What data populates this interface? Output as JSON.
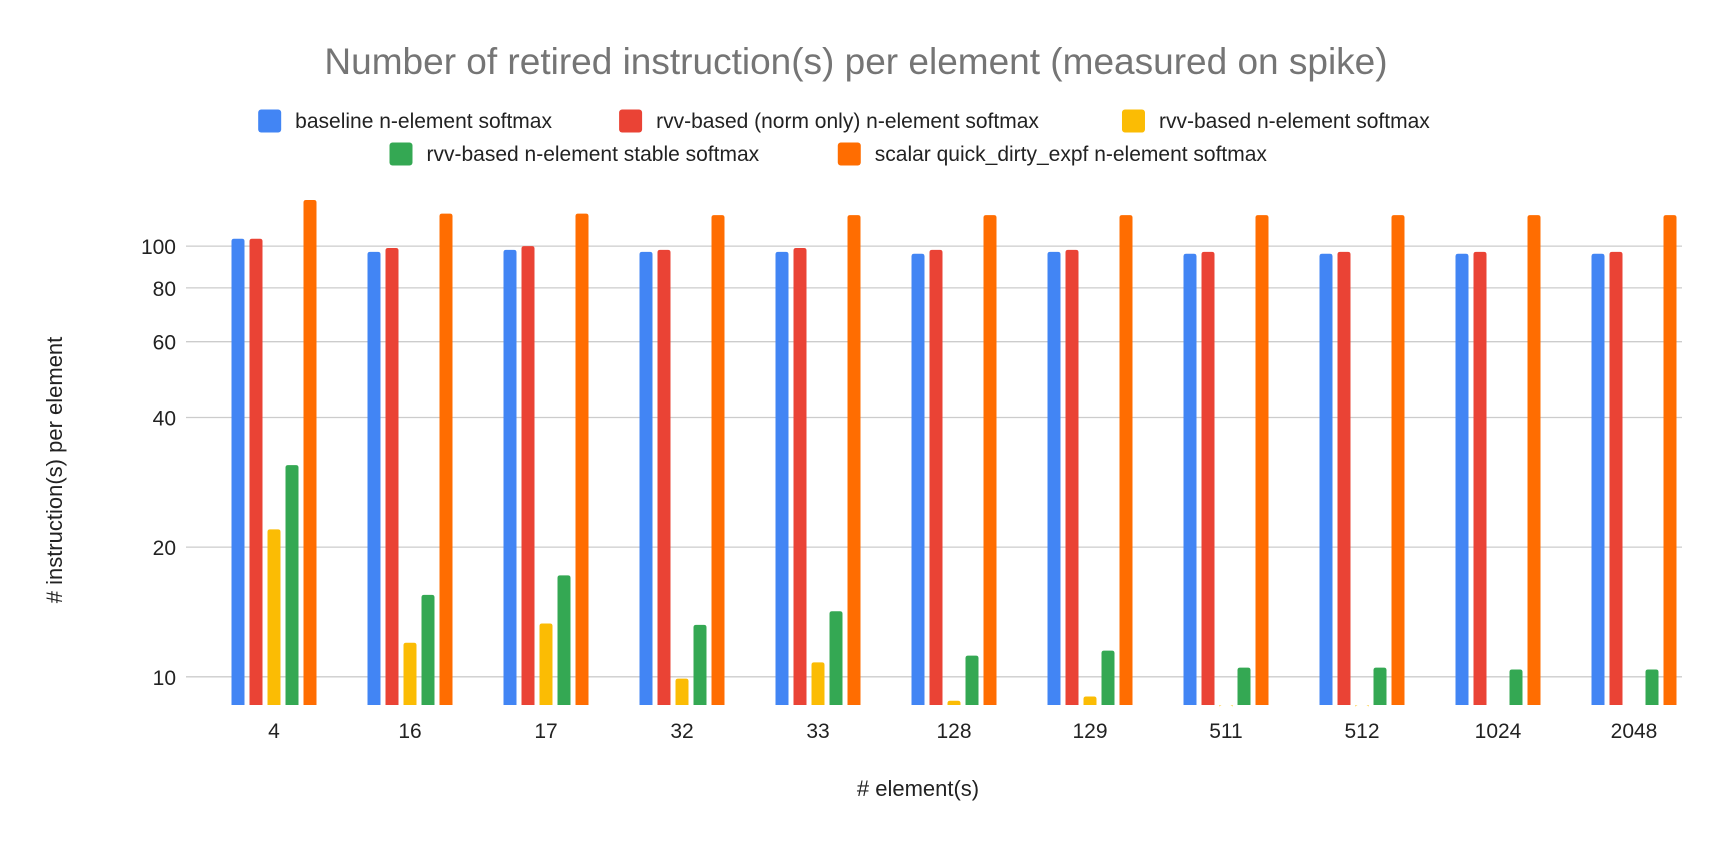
{
  "chart_data": {
    "type": "bar",
    "title": "Number of retired instruction(s) per element (measured on spike)",
    "xlabel": "# element(s)",
    "ylabel": "# instruction(s) per element",
    "y_scale": "log",
    "ylim": [
      8.6,
      135
    ],
    "y_ticks": [
      10,
      20,
      40,
      60,
      80,
      100
    ],
    "grid": true,
    "legend_position": "top",
    "categories": [
      "4",
      "16",
      "17",
      "32",
      "33",
      "128",
      "129",
      "511",
      "512",
      "1024",
      "2048"
    ],
    "series": [
      {
        "name": "baseline n-element softmax",
        "color": "#4285f4",
        "values": [
          104,
          97,
          98,
          97,
          97,
          96,
          97,
          96,
          96,
          96,
          96
        ]
      },
      {
        "name": "rvv-based (norm only) n-element softmax",
        "color": "#ea4335",
        "values": [
          104,
          99,
          100,
          98,
          99,
          98,
          98,
          97,
          97,
          97,
          97
        ]
      },
      {
        "name": "rvv-based n-element softmax",
        "color": "#fbbc04",
        "values": [
          22,
          12,
          13.3,
          9.9,
          10.8,
          8.8,
          9.0,
          8.6,
          8.6,
          null,
          null
        ]
      },
      {
        "name": "rvv-based n-element stable softmax",
        "color": "#34a853",
        "values": [
          31,
          15.5,
          17.2,
          13.2,
          14.2,
          11.2,
          11.5,
          10.5,
          10.5,
          10.4,
          10.4
        ]
      },
      {
        "name": "scalar quick_dirty_expf n-element softmax",
        "color": "#ff6d01",
        "values": [
          128,
          119,
          119,
          118,
          118,
          118,
          118,
          118,
          118,
          118,
          118
        ]
      }
    ]
  }
}
